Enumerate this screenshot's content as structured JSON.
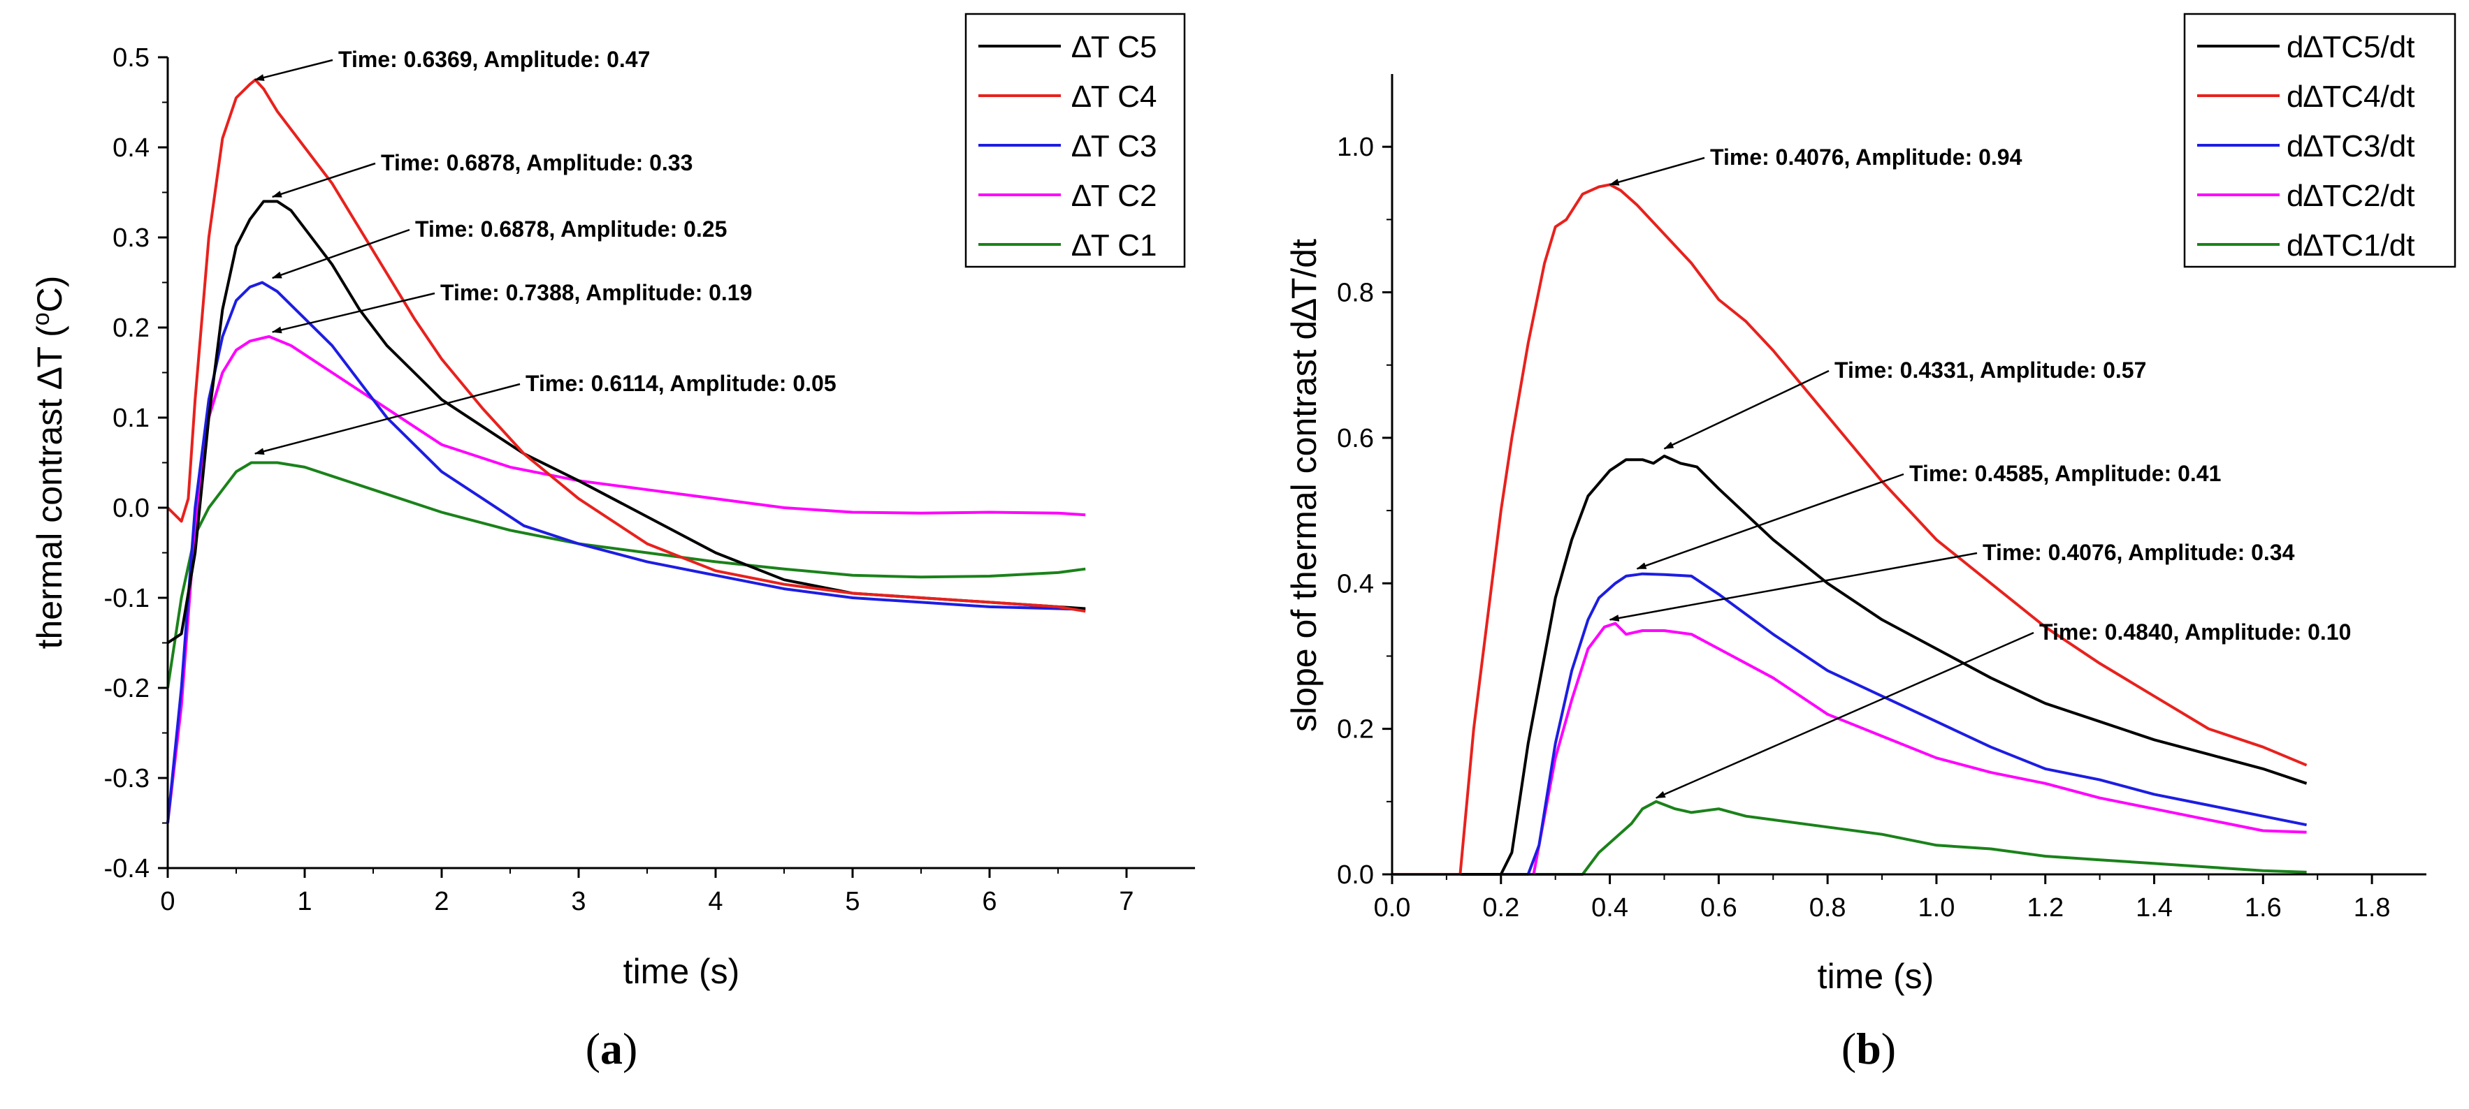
{
  "chart_data": [
    {
      "panel": "(a)",
      "panel_parts": {
        "open": "(",
        "letter": "a",
        "close": ")"
      },
      "type": "line",
      "title": "",
      "xlabel": "time (s)",
      "ylabel_main": "thermal contrast ∆T (",
      "ylabel_sup": "o",
      "ylabel_end": "C)",
      "xlim": [
        0,
        7.5
      ],
      "ylim": [
        -0.4,
        0.5
      ],
      "x_ticks": [
        0,
        1,
        2,
        3,
        4,
        5,
        6,
        7
      ],
      "x_tick_labels": [
        "0",
        "1",
        "2",
        "3",
        "4",
        "5",
        "6",
        "7"
      ],
      "y_ticks": [
        -0.4,
        -0.3,
        -0.2,
        -0.1,
        0.0,
        0.1,
        0.2,
        0.3,
        0.4,
        0.5
      ],
      "y_tick_labels": [
        "-0.4",
        "-0.3",
        "-0.2",
        "-0.1",
        "0.0",
        "0.1",
        "0.2",
        "0.3",
        "0.4",
        "0.5"
      ],
      "legend_position": "top-right",
      "series": [
        {
          "name": "∆T C5",
          "color": "#000000",
          "x": [
            0,
            0.1,
            0.2,
            0.3,
            0.4,
            0.5,
            0.6,
            0.7,
            0.8,
            0.9,
            1.0,
            1.2,
            1.4,
            1.6,
            1.8,
            2.0,
            2.3,
            2.6,
            3.0,
            3.5,
            4.0,
            4.5,
            5.0,
            5.5,
            6.0,
            6.5,
            6.7
          ],
          "values": [
            -0.15,
            -0.14,
            -0.05,
            0.1,
            0.22,
            0.29,
            0.32,
            0.34,
            0.34,
            0.33,
            0.31,
            0.27,
            0.22,
            0.18,
            0.15,
            0.12,
            0.09,
            0.06,
            0.03,
            -0.01,
            -0.05,
            -0.08,
            -0.095,
            -0.1,
            -0.105,
            -0.11,
            -0.112
          ]
        },
        {
          "name": "∆T C4",
          "color": "#e8211d",
          "x": [
            0,
            0.1,
            0.15,
            0.2,
            0.3,
            0.4,
            0.5,
            0.6,
            0.64,
            0.7,
            0.8,
            1.0,
            1.2,
            1.4,
            1.6,
            1.8,
            2.0,
            2.3,
            2.6,
            3.0,
            3.5,
            4.0,
            4.5,
            5.0,
            5.5,
            6.0,
            6.5,
            6.7
          ],
          "values": [
            0.0,
            -0.015,
            0.01,
            0.12,
            0.3,
            0.41,
            0.455,
            0.47,
            0.475,
            0.465,
            0.44,
            0.4,
            0.36,
            0.31,
            0.26,
            0.21,
            0.165,
            0.11,
            0.06,
            0.01,
            -0.04,
            -0.07,
            -0.085,
            -0.095,
            -0.1,
            -0.105,
            -0.11,
            -0.115
          ]
        },
        {
          "name": "∆T C3",
          "color": "#1d1de3",
          "x": [
            0,
            0.1,
            0.2,
            0.3,
            0.4,
            0.5,
            0.6,
            0.69,
            0.8,
            1.0,
            1.2,
            1.4,
            1.6,
            1.8,
            2.0,
            2.3,
            2.6,
            3.0,
            3.5,
            4.0,
            4.5,
            5.0,
            5.5,
            6.0,
            6.5,
            6.7
          ],
          "values": [
            -0.35,
            -0.2,
            0.0,
            0.12,
            0.19,
            0.23,
            0.245,
            0.25,
            0.24,
            0.21,
            0.18,
            0.14,
            0.1,
            0.07,
            0.04,
            0.01,
            -0.02,
            -0.04,
            -0.06,
            -0.075,
            -0.09,
            -0.1,
            -0.105,
            -0.11,
            -0.112,
            -0.113
          ]
        },
        {
          "name": "∆T C2",
          "color": "#ff00ff",
          "x": [
            0,
            0.1,
            0.2,
            0.3,
            0.4,
            0.5,
            0.6,
            0.74,
            0.9,
            1.0,
            1.2,
            1.4,
            1.6,
            1.8,
            2.0,
            2.5,
            3.0,
            3.5,
            4.0,
            4.5,
            5.0,
            5.5,
            6.0,
            6.5,
            6.7
          ],
          "values": [
            -0.35,
            -0.22,
            -0.02,
            0.1,
            0.15,
            0.175,
            0.185,
            0.19,
            0.18,
            0.17,
            0.15,
            0.13,
            0.11,
            0.09,
            0.07,
            0.045,
            0.03,
            0.02,
            0.01,
            0.0,
            -0.005,
            -0.006,
            -0.005,
            -0.006,
            -0.008
          ]
        },
        {
          "name": "∆T C1",
          "color": "#1a821a",
          "x": [
            0,
            0.1,
            0.2,
            0.3,
            0.4,
            0.5,
            0.61,
            0.7,
            0.8,
            1.0,
            1.2,
            1.5,
            2.0,
            2.5,
            3.0,
            3.5,
            4.0,
            4.5,
            5.0,
            5.5,
            6.0,
            6.5,
            6.7
          ],
          "values": [
            -0.2,
            -0.1,
            -0.03,
            0.0,
            0.02,
            0.04,
            0.05,
            0.05,
            0.05,
            0.045,
            0.035,
            0.02,
            -0.005,
            -0.025,
            -0.04,
            -0.05,
            -0.06,
            -0.068,
            -0.075,
            -0.077,
            -0.076,
            -0.072,
            -0.068
          ]
        }
      ],
      "annotations": [
        {
          "text": "Time: 0.6369, Amplitude: 0.47",
          "x": 0.6369,
          "y": 0.475
        },
        {
          "text": "Time: 0.6878, Amplitude: 0.33",
          "x": 0.7644,
          "y": 0.345
        },
        {
          "text": "Time: 0.6878, Amplitude: 0.25",
          "x": 0.7644,
          "y": 0.255
        },
        {
          "text": "Time: 0.7388, Amplitude: 0.19",
          "x": 0.7644,
          "y": 0.195
        },
        {
          "text": "Time: 0.6114, Amplitude: 0.05",
          "x": 0.6369,
          "y": 0.06
        }
      ]
    },
    {
      "panel": "(b)",
      "panel_parts": {
        "open": "(",
        "letter": "b",
        "close": ")"
      },
      "type": "line",
      "title": "",
      "xlabel": "time (s)",
      "ylabel": "slope of thermal contrast d∆T/dt",
      "xlim": [
        0,
        1.9
      ],
      "ylim": [
        0,
        1.1
      ],
      "x_ticks": [
        0.0,
        0.2,
        0.4,
        0.6,
        0.8,
        1.0,
        1.2,
        1.4,
        1.6,
        1.8
      ],
      "x_tick_labels": [
        "0.0",
        "0.2",
        "0.4",
        "0.6",
        "0.8",
        "1.0",
        "1.2",
        "1.4",
        "1.6",
        "1.8"
      ],
      "y_ticks": [
        0.0,
        0.2,
        0.4,
        0.6,
        0.8,
        1.0
      ],
      "y_tick_labels": [
        "0.0",
        "0.2",
        "0.4",
        "0.6",
        "0.8",
        "1.0"
      ],
      "legend_position": "top-right",
      "series": [
        {
          "name": "d∆TC5/dt",
          "color": "#000000",
          "x": [
            0,
            0.2,
            0.22,
            0.25,
            0.28,
            0.3,
            0.33,
            0.36,
            0.4,
            0.43,
            0.46,
            0.48,
            0.5,
            0.53,
            0.56,
            0.6,
            0.7,
            0.8,
            0.9,
            1.0,
            1.1,
            1.2,
            1.3,
            1.4,
            1.5,
            1.6,
            1.68
          ],
          "values": [
            0,
            0,
            0.03,
            0.18,
            0.3,
            0.38,
            0.46,
            0.52,
            0.555,
            0.57,
            0.57,
            0.565,
            0.575,
            0.565,
            0.56,
            0.53,
            0.46,
            0.4,
            0.35,
            0.31,
            0.27,
            0.235,
            0.21,
            0.185,
            0.165,
            0.145,
            0.125
          ]
        },
        {
          "name": "d∆TC4/dt",
          "color": "#e8211d",
          "x": [
            0,
            0.125,
            0.15,
            0.18,
            0.2,
            0.22,
            0.25,
            0.28,
            0.3,
            0.32,
            0.35,
            0.38,
            0.4,
            0.42,
            0.45,
            0.5,
            0.55,
            0.6,
            0.65,
            0.7,
            0.8,
            0.9,
            1.0,
            1.1,
            1.2,
            1.3,
            1.4,
            1.5,
            1.6,
            1.68
          ],
          "values": [
            0,
            0,
            0.2,
            0.38,
            0.5,
            0.6,
            0.73,
            0.84,
            0.89,
            0.9,
            0.935,
            0.945,
            0.948,
            0.94,
            0.92,
            0.88,
            0.84,
            0.79,
            0.76,
            0.72,
            0.63,
            0.54,
            0.46,
            0.4,
            0.34,
            0.29,
            0.245,
            0.2,
            0.175,
            0.15
          ]
        },
        {
          "name": "d∆TC3/dt",
          "color": "#1d1de3",
          "x": [
            0,
            0.25,
            0.27,
            0.3,
            0.33,
            0.36,
            0.38,
            0.41,
            0.43,
            0.45,
            0.46,
            0.5,
            0.55,
            0.6,
            0.7,
            0.8,
            0.9,
            1.0,
            1.1,
            1.2,
            1.3,
            1.4,
            1.5,
            1.6,
            1.68
          ],
          "values": [
            0,
            0,
            0.04,
            0.18,
            0.28,
            0.35,
            0.38,
            0.4,
            0.41,
            0.412,
            0.413,
            0.412,
            0.41,
            0.385,
            0.33,
            0.28,
            0.245,
            0.21,
            0.175,
            0.145,
            0.13,
            0.11,
            0.095,
            0.08,
            0.068
          ]
        },
        {
          "name": "d∆TC2/dt",
          "color": "#ff00ff",
          "x": [
            0,
            0.26,
            0.28,
            0.3,
            0.33,
            0.36,
            0.39,
            0.41,
            0.43,
            0.46,
            0.5,
            0.55,
            0.6,
            0.7,
            0.8,
            0.9,
            1.0,
            1.1,
            1.2,
            1.3,
            1.4,
            1.5,
            1.6,
            1.68
          ],
          "values": [
            0,
            0,
            0.08,
            0.16,
            0.24,
            0.31,
            0.34,
            0.345,
            0.33,
            0.335,
            0.335,
            0.33,
            0.31,
            0.27,
            0.22,
            0.19,
            0.16,
            0.14,
            0.125,
            0.105,
            0.09,
            0.075,
            0.06,
            0.058
          ]
        },
        {
          "name": "d∆TC1/dt",
          "color": "#1a821a",
          "x": [
            0,
            0.35,
            0.38,
            0.41,
            0.44,
            0.46,
            0.485,
            0.52,
            0.55,
            0.6,
            0.65,
            0.7,
            0.8,
            0.9,
            1.0,
            1.1,
            1.2,
            1.3,
            1.4,
            1.5,
            1.6,
            1.68
          ],
          "values": [
            0,
            0,
            0.03,
            0.05,
            0.07,
            0.09,
            0.1,
            0.09,
            0.085,
            0.09,
            0.08,
            0.075,
            0.065,
            0.055,
            0.04,
            0.035,
            0.025,
            0.02,
            0.015,
            0.01,
            0.005,
            0.003
          ]
        }
      ],
      "annotations": [
        {
          "text": "Time: 0.4076, Amplitude: 0.94",
          "x": 0.4,
          "y": 0.948
        },
        {
          "text": "Time: 0.4331, Amplitude: 0.57",
          "x": 0.5,
          "y": 0.585
        },
        {
          "text": "Time: 0.4585, Amplitude: 0.41",
          "x": 0.45,
          "y": 0.42
        },
        {
          "text": "Time: 0.4076, Amplitude: 0.34",
          "x": 0.4,
          "y": 0.35
        },
        {
          "text": "Time: 0.4840, Amplitude: 0.10",
          "x": 0.485,
          "y": 0.105
        }
      ]
    }
  ]
}
